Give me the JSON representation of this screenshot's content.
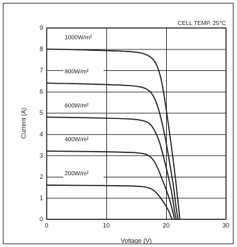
{
  "chart_data": {
    "type": "line",
    "title": "",
    "annotation": "CELL TEMP. 25°C",
    "xlabel": "Voltage (V)",
    "ylabel": "Current (A)",
    "xlim": [
      0,
      30
    ],
    "ylim": [
      0,
      9
    ],
    "xticks": [
      "0",
      "10",
      "20",
      "30"
    ],
    "yticks": [
      "0",
      "1",
      "2",
      "3",
      "4",
      "5",
      "6",
      "7",
      "8",
      "9"
    ],
    "grid": true,
    "series": [
      {
        "name": "1000W/m²",
        "line_color": "#1a1a1a",
        "x": [
          0,
          5,
          10,
          14,
          16,
          17.5,
          18.5,
          19.3,
          20,
          20.7,
          21.4,
          22.0,
          22.3
        ],
        "y": [
          8.0,
          7.97,
          7.93,
          7.88,
          7.8,
          7.6,
          7.2,
          6.4,
          5.2,
          3.8,
          2.3,
          0.8,
          0
        ]
      },
      {
        "name": "800W/m²",
        "line_color": "#1a1a1a",
        "x": [
          0,
          5,
          10,
          14,
          16,
          17.3,
          18.2,
          19.0,
          19.8,
          20.5,
          21.2,
          21.7,
          22.0
        ],
        "y": [
          6.4,
          6.37,
          6.33,
          6.28,
          6.2,
          6.0,
          5.6,
          4.9,
          3.9,
          2.8,
          1.6,
          0.5,
          0
        ]
      },
      {
        "name": "600W/m²",
        "line_color": "#1a1a1a",
        "x": [
          0,
          5,
          10,
          14,
          16,
          17.2,
          18.0,
          18.8,
          19.5,
          20.2,
          20.9,
          21.4,
          21.7
        ],
        "y": [
          4.8,
          4.78,
          4.75,
          4.71,
          4.64,
          4.5,
          4.2,
          3.7,
          3.0,
          2.2,
          1.3,
          0.4,
          0
        ]
      },
      {
        "name": "400W/m²",
        "line_color": "#1a1a1a",
        "x": [
          0,
          5,
          10,
          14,
          16,
          17.0,
          17.8,
          18.6,
          19.3,
          20.0,
          20.7,
          21.2,
          21.4
        ],
        "y": [
          3.2,
          3.19,
          3.17,
          3.14,
          3.09,
          3.0,
          2.8,
          2.4,
          1.9,
          1.4,
          0.8,
          0.25,
          0
        ]
      },
      {
        "name": "200W/m²",
        "line_color": "#1a1a1a",
        "x": [
          0,
          5,
          10,
          14,
          16,
          17.0,
          17.8,
          18.5,
          19.2,
          19.8,
          20.4,
          20.8,
          21.0
        ],
        "y": [
          1.6,
          1.59,
          1.58,
          1.56,
          1.53,
          1.48,
          1.38,
          1.2,
          0.95,
          0.7,
          0.4,
          0.12,
          0
        ]
      }
    ]
  }
}
